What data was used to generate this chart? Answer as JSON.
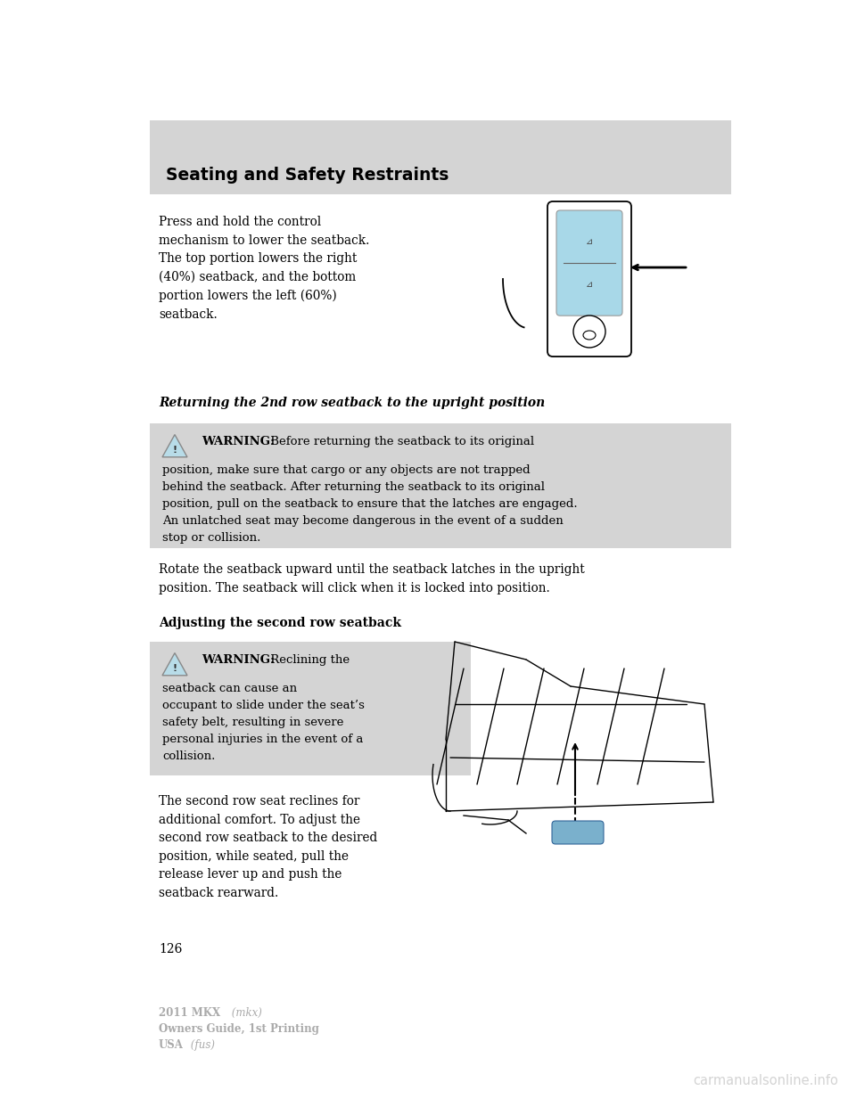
{
  "page_bg": "#ffffff",
  "header_bg": "#d4d4d4",
  "header_text": "Seating and Safety Restraints",
  "warning_bg": "#d4d4d4",
  "page_number": "126",
  "footer_line1_bold": "2011 MKX",
  "footer_line1_italic": " (mkx)",
  "footer_line2": "Owners Guide, 1st Printing",
  "footer_line3_bold": "USA",
  "footer_line3_italic": " (fus)",
  "watermark": "carmanualsonline.info",
  "body_text_1": "Press and hold the control\nmechanism to lower the seatback.\nThe top portion lowers the right\n(40%) seatback, and the bottom\nportion lowers the left (60%)\nseatback.",
  "section_heading_1": "Returning the 2nd row seatback to the upright position",
  "warning1_line1_bold": "WARNING:",
  "warning1_line1_rest": " Before returning the seatback to its original",
  "warning1_line2": "position, make sure that cargo or any objects are not trapped",
  "warning1_line3": "behind the seatback. After returning the seatback to its original",
  "warning1_line4": "position, pull on the seatback to ensure that the latches are engaged.",
  "warning1_line5": "An unlatched seat may become dangerous in the event of a sudden",
  "warning1_line6": "stop or collision.",
  "rotate_text": "Rotate the seatback upward until the seatback latches in the upright\nposition. The seatback will click when it is locked into position.",
  "section_heading_2": "Adjusting the second row seatback",
  "warning2_line1_bold": "WARNING:",
  "warning2_line1_rest": " Reclining the",
  "warning2_line2": "seatback can cause an",
  "warning2_line3": "occupant to slide under the seat’s",
  "warning2_line4": "safety belt, resulting in severe",
  "warning2_line5": "personal injuries in the event of a",
  "warning2_line6": "collision.",
  "body_text_2": "The second row seat reclines for\nadditional comfort. To adjust the\nsecond row seatback to the desired\nposition, while seated, pull the\nrelease lever up and push the\nseatback rearward.",
  "tri_color": "#b8dce8",
  "tri_border": "#888888"
}
